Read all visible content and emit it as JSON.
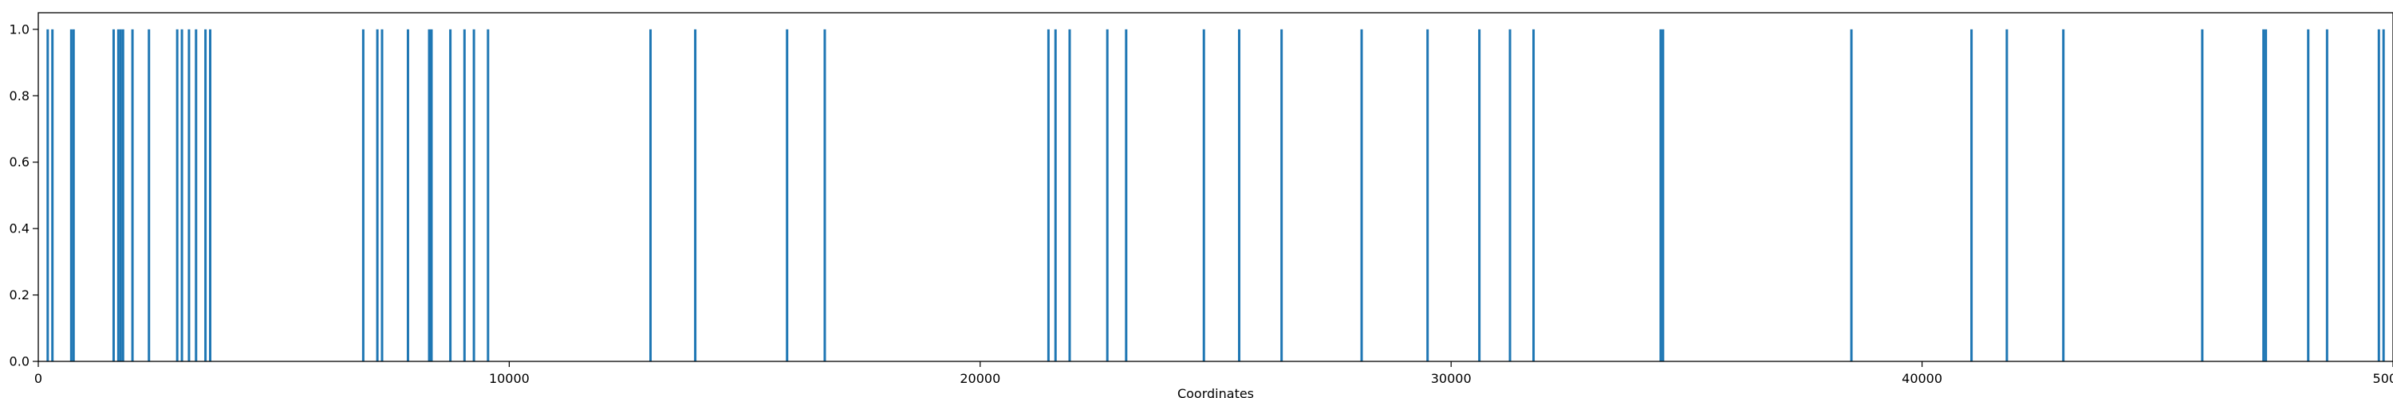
{
  "chart_data": {
    "type": "bar",
    "title": "",
    "xlabel": "Coordinates",
    "ylabel": "",
    "xlim": [
      0,
      50000
    ],
    "ylim": [
      0,
      1.05
    ],
    "x_ticks": [
      0,
      10000,
      20000,
      30000,
      40000,
      50000
    ],
    "x_tick_labels": [
      "0",
      "10000",
      "20000",
      "30000",
      "40000",
      "50000"
    ],
    "y_ticks": [
      0.0,
      0.2,
      0.4,
      0.6,
      0.8,
      1.0
    ],
    "y_tick_labels": [
      "0.0",
      "0.2",
      "0.4",
      "0.6",
      "0.8",
      "1.0"
    ],
    "grid": false,
    "legend": "none",
    "bar_color": "#1f77b4",
    "series": [
      {
        "x": [
          200,
          300,
          700,
          750,
          1600,
          1700,
          1750,
          1800,
          2000,
          2350,
          2950,
          3050,
          3200,
          3350,
          3550,
          3650,
          6900,
          7200,
          7300,
          7850,
          8300,
          8350,
          8750,
          9050,
          9250,
          9550,
          13000,
          13950,
          15900,
          16700,
          21450,
          21600,
          21900,
          22700,
          23100,
          24750,
          25500,
          26400,
          28100,
          29500,
          30600,
          31250,
          31750,
          34450,
          34500,
          38500,
          41050,
          41800,
          43000,
          45950,
          47250,
          47300,
          48200,
          48600,
          49700,
          49800
        ],
        "values": [
          1,
          1,
          1,
          1,
          1,
          1,
          1,
          1,
          1,
          1,
          1,
          1,
          1,
          1,
          1,
          1,
          1,
          1,
          1,
          1,
          1,
          1,
          1,
          1,
          1,
          1,
          1,
          1,
          1,
          1,
          1,
          1,
          1,
          1,
          1,
          1,
          1,
          1,
          1,
          1,
          1,
          1,
          1,
          1,
          1,
          1,
          1,
          1,
          1,
          1,
          1,
          1,
          1,
          1,
          1,
          1
        ]
      }
    ]
  }
}
